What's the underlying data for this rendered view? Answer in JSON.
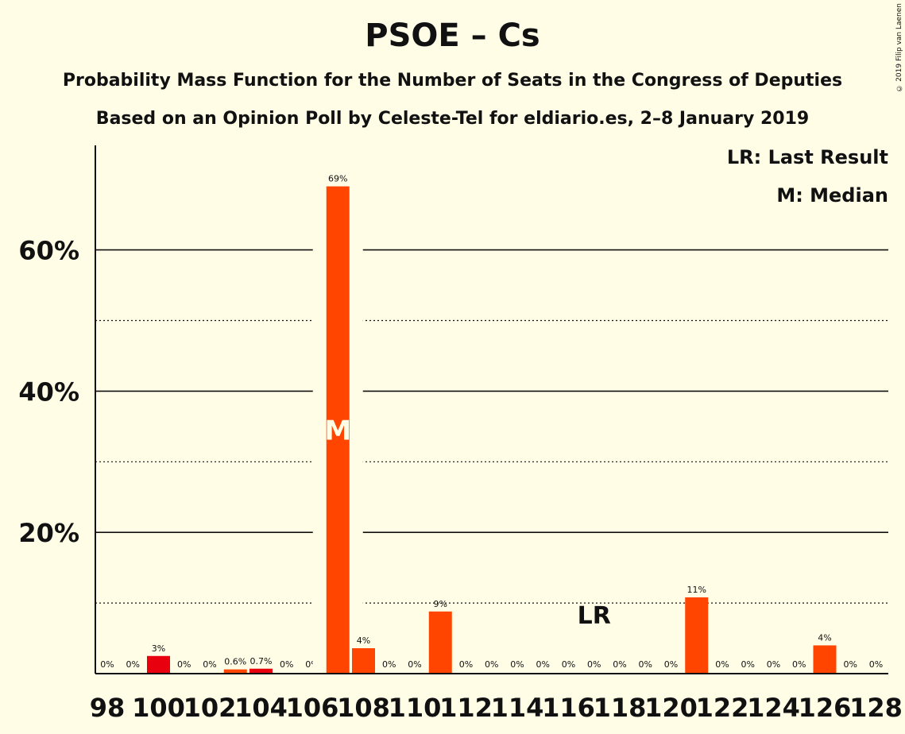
{
  "title": "PSOE – Cs",
  "subtitle": "Probability Mass Function for the Number of Seats in the Congress of Deputies",
  "subtitle2": "Based on an Opinion Poll by Celeste-Tel for eldiario.es, 2–8 January 2019",
  "copyright": "© 2019 Filip van Laenen",
  "legend": {
    "last_result": "LR: Last Result",
    "median": "M: Median"
  },
  "colors": {
    "bar": "#FF4500",
    "bar_dark": "#E8000F",
    "background": "#FFFDE6",
    "median_text": "#FFFDE6"
  },
  "chart_data": {
    "type": "bar",
    "title": "PSOE – Cs",
    "x": [
      98,
      99,
      100,
      101,
      102,
      103,
      104,
      105,
      106,
      107,
      108,
      109,
      110,
      111,
      112,
      113,
      114,
      115,
      116,
      117,
      118,
      119,
      120,
      121,
      122,
      123,
      124,
      125,
      126,
      127,
      128
    ],
    "values": [
      0,
      0,
      2.5,
      0,
      0,
      0.6,
      0.7,
      0,
      0,
      69,
      3.6,
      0,
      0,
      8.8,
      0,
      0,
      0,
      0,
      0,
      0,
      0,
      0,
      0,
      10.8,
      0,
      0,
      0,
      0,
      4.0,
      0,
      0
    ],
    "labels": [
      "0%",
      "0%",
      "3%",
      "0%",
      "0%",
      "0.6%",
      "0.7%",
      "0%",
      "0%",
      "69%",
      "4%",
      "0%",
      "0%",
      "9%",
      "0%",
      "0%",
      "0%",
      "0%",
      "0%",
      "0%",
      "0%",
      "0%",
      "0%",
      "11%",
      "0%",
      "0%",
      "0%",
      "0%",
      "4%",
      "0%",
      "0%"
    ],
    "dark_bars": [
      100,
      104
    ],
    "xticks": [
      "98",
      "100",
      "102",
      "104",
      "106",
      "108",
      "110",
      "112",
      "114",
      "116",
      "118",
      "120",
      "122",
      "124",
      "126",
      "128"
    ],
    "yticks": [
      "20%",
      "40%",
      "60%"
    ],
    "ylim": [
      0,
      75
    ],
    "median": 107,
    "median_label": "M",
    "last_result": 117,
    "last_result_label": "LR",
    "grid": {
      "solid": [
        20,
        40,
        60
      ],
      "dotted": [
        10,
        30,
        50
      ]
    }
  }
}
